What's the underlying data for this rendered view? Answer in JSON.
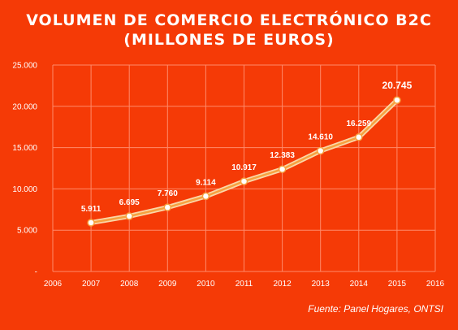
{
  "chart_data": {
    "type": "line",
    "title_line1": "VOLUMEN DE COMERCIO ELECTRÓNICO B2C",
    "title_line2": "(MILLONES DE EUROS)",
    "x": [
      2007,
      2008,
      2009,
      2010,
      2011,
      2012,
      2013,
      2014,
      2015
    ],
    "series": [
      {
        "values": [
          5911,
          6695,
          7760,
          9114,
          10917,
          12383,
          14610,
          16259,
          20745
        ],
        "labels": [
          "5.911",
          "6.695",
          "7.760",
          "9.114",
          "10.917",
          "12.383",
          "14.610",
          "16.259",
          "20.745"
        ]
      }
    ],
    "xlim": [
      2006,
      2016
    ],
    "ylim": [
      0,
      25000
    ],
    "x_ticks": [
      "2006",
      "2007",
      "2008",
      "2009",
      "2010",
      "2011",
      "2012",
      "2013",
      "2014",
      "2015",
      "2016"
    ],
    "y_ticks": [
      "-",
      "5.000",
      "10.000",
      "15.000",
      "20.000",
      "25.000"
    ],
    "grid": true,
    "source": "Fuente: Panel Hogares, ONTSI",
    "colors": {
      "background": "#f53a06",
      "grid": "#ff8a6a",
      "line_outer": "#fbd7a8",
      "line_inner": "#f6a13f",
      "marker_fill": "#ffffff",
      "marker_stroke": "#f6a13f"
    }
  }
}
